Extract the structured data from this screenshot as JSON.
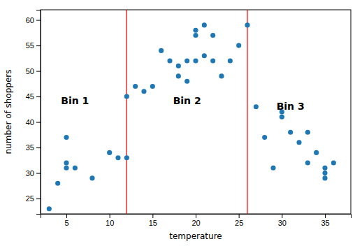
{
  "chart_data": {
    "type": "scatter",
    "x": [
      3,
      4,
      5,
      5,
      5,
      6,
      8,
      10,
      11,
      12,
      12,
      13,
      14,
      15,
      16,
      17,
      18,
      18,
      19,
      19,
      20,
      20,
      20,
      21,
      21,
      22,
      22,
      23,
      24,
      25,
      26,
      27,
      28,
      29,
      30,
      30,
      31,
      32,
      33,
      33,
      34,
      35,
      35,
      35,
      36
    ],
    "y": [
      23,
      28,
      31,
      32,
      37,
      31,
      29,
      34,
      33,
      33,
      45,
      47,
      46,
      47,
      54,
      52,
      49,
      51,
      48,
      52,
      58,
      57,
      52,
      53,
      59,
      57,
      52,
      49,
      52,
      55,
      59,
      43,
      37,
      31,
      42,
      41,
      38,
      36,
      38,
      32,
      34,
      31,
      30,
      29,
      32
    ],
    "color": "#1f77b4",
    "marker": "circle",
    "vlines": {
      "x": [
        12,
        26
      ],
      "color": "red"
    },
    "annotations": [
      {
        "text": "Bin 1",
        "x": 6,
        "y": 44
      },
      {
        "text": "Bin 2",
        "x": 19,
        "y": 44
      },
      {
        "text": "Bin 3",
        "x": 31,
        "y": 43
      }
    ],
    "x_label": "temperature",
    "y_label": "number of shoppers",
    "xlim": [
      2,
      38
    ],
    "ylim": [
      22,
      62
    ],
    "xticks": [
      5,
      10,
      15,
      20,
      25,
      30,
      35
    ],
    "yticks": [
      25,
      30,
      35,
      40,
      45,
      50,
      55,
      60
    ],
    "grid": false
  }
}
